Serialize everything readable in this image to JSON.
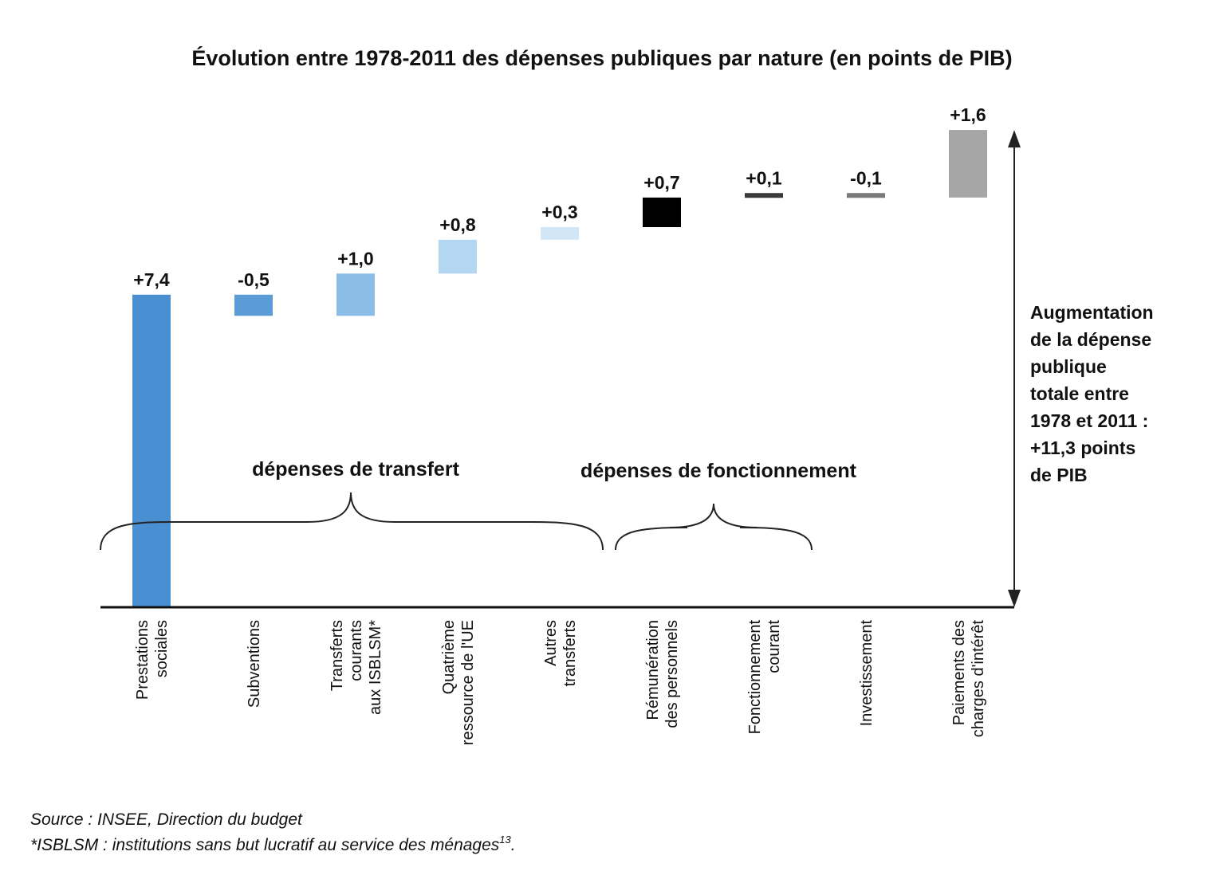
{
  "chart_data": {
    "type": "waterfall",
    "title": "Évolution entre 1978-2011 des dépenses publiques par nature (en points de PIB)",
    "categories": [
      [
        "Prestations",
        "sociales"
      ],
      [
        "Subventions"
      ],
      [
        "Transferts",
        "courants",
        "aux ISBLSM*"
      ],
      [
        "Quatrième",
        "ressource de l'UE"
      ],
      [
        "Autres",
        "transferts"
      ],
      [
        "Rémunération",
        "des personnels"
      ],
      [
        "Fonctionnement",
        "courant"
      ],
      [
        "Investissement"
      ],
      [
        "Paiements des",
        "charges d'intérêt"
      ]
    ],
    "values": [
      7.4,
      -0.5,
      1.0,
      0.8,
      0.3,
      0.7,
      0.1,
      -0.1,
      1.6
    ],
    "value_labels": [
      "+7,4",
      "-0,5",
      "+1,0",
      "+0,8",
      "+0,3",
      "+0,7",
      "+0,1",
      "-0,1",
      "+1,6"
    ],
    "colors": [
      "#4a8fd2",
      "#5c9cd6",
      "#8cbde6",
      "#b3d6f1",
      "#d3e6f6",
      "#000000",
      "#3a3a3a",
      "#7a7a7a",
      "#a6a6a6"
    ],
    "groups": [
      {
        "label": "dépenses de transfert",
        "from": 0,
        "to": 4
      },
      {
        "label": "dépenses de fonctionnement",
        "from": 5,
        "to": 6
      }
    ],
    "total": {
      "value": 11.3,
      "label_lines": [
        "Augmentation",
        "de la dépense",
        "publique",
        "totale entre",
        "1978 et 2011 :",
        "+11,3 points",
        "de PIB"
      ]
    },
    "ylim": [
      0,
      11.3
    ],
    "grid": false,
    "legend": "none"
  },
  "notes": {
    "source": "Source : INSEE, Direction du budget",
    "footnote": "*ISBLSM : institutions sans but lucratif au service des ménages",
    "footnote_ref": "13",
    "footnote_end": "."
  }
}
